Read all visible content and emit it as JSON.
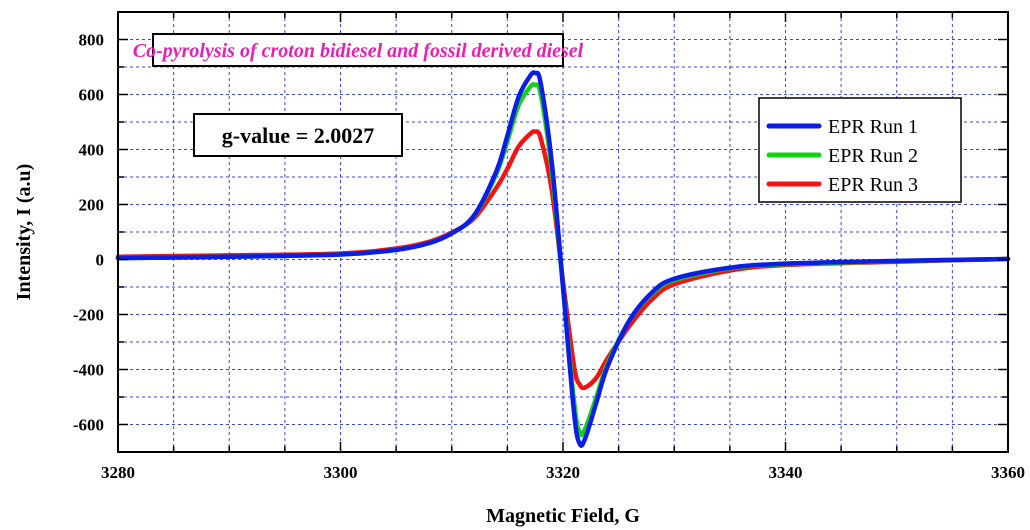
{
  "chart_data": {
    "type": "line",
    "title": "Co-pyrolysis of croton bidiesel and fossil derived diesel",
    "xlabel": "Magnetic Field, G",
    "ylabel": "Intensity, I (a.u)",
    "xlim": [
      3280,
      3360
    ],
    "ylim": [
      -700,
      900
    ],
    "xticks": [
      3280,
      3300,
      3320,
      3340,
      3360
    ],
    "yticks": [
      -600,
      -400,
      -200,
      0,
      200,
      400,
      600,
      800
    ],
    "grid": true,
    "legend_position": "top-right",
    "annotation": "g-value = 2.0027",
    "x": [
      3280,
      3290,
      3300,
      3305,
      3308,
      3310,
      3312,
      3314,
      3315,
      3316,
      3317,
      3317.5,
      3318,
      3319,
      3320,
      3321,
      3321.5,
      3322,
      3323,
      3324,
      3326,
      3328,
      3330,
      3335,
      3340,
      3350,
      3360
    ],
    "series": [
      {
        "name": "EPR Run 1",
        "color": "#0a1ee6",
        "values": [
          5,
          10,
          18,
          35,
          60,
          95,
          160,
          320,
          450,
          590,
          665,
          678,
          640,
          350,
          -100,
          -560,
          -670,
          -650,
          -520,
          -390,
          -220,
          -120,
          -70,
          -30,
          -15,
          -5,
          2
        ]
      },
      {
        "name": "EPR Run 2",
        "color": "#14d214",
        "values": [
          5,
          10,
          18,
          35,
          60,
          95,
          158,
          310,
          430,
          560,
          625,
          635,
          600,
          320,
          -100,
          -520,
          -630,
          -615,
          -500,
          -380,
          -220,
          -125,
          -75,
          -32,
          -17,
          -6,
          2
        ]
      },
      {
        "name": "EPR Run 3",
        "color": "#f01414",
        "values": [
          10,
          15,
          22,
          40,
          65,
          98,
          150,
          260,
          330,
          410,
          455,
          465,
          440,
          250,
          -80,
          -390,
          -455,
          -465,
          -430,
          -360,
          -240,
          -145,
          -90,
          -40,
          -20,
          -8,
          2
        ]
      }
    ]
  }
}
